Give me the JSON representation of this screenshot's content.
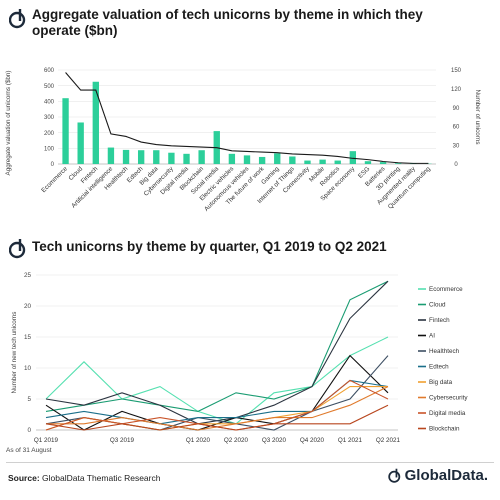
{
  "header1": {
    "title": "Aggregate valuation of  tech unicorns by theme in which they operate ($bn)"
  },
  "header2": {
    "title": "Tech unicorns by theme by quarter, Q1 2019 to Q2 2021"
  },
  "footer": {
    "note": "As of 31 August",
    "source_label": "Source:",
    "source_text": "GlobalData Thematic Research",
    "brand": "GlobalData."
  },
  "colors": {
    "bar": "#2ccf9a",
    "line_dark": "#1a1a1a",
    "grid": "#e6e6e6",
    "logo": "#1d2a3a"
  },
  "icons": {
    "logo": "globaldata-logo-icon"
  },
  "chart_data": [
    {
      "type": "bar",
      "title": "Aggregate valuation of  tech unicorns by theme in which they operate ($bn)",
      "ylabel": "Aggregate valuation of unicorns ($bn)",
      "y2label": "Number of unicorns",
      "ylim": [
        0,
        600
      ],
      "y2lim": [
        0,
        150
      ],
      "yticks": [
        0,
        100,
        200,
        300,
        400,
        500,
        600
      ],
      "y2ticks": [
        0,
        30,
        60,
        90,
        120,
        150
      ],
      "categories": [
        "Ecommerce",
        "Cloud",
        "Fintech",
        "Artificial intelligence",
        "Healthtech",
        "Edtech",
        "Big data",
        "Cybersecurity",
        "Digital media",
        "Blockchain",
        "Social media",
        "Electric vehicles",
        "Autonomous vehicles",
        "The future of work",
        "Gaming",
        "Internet of Things",
        "Connectivity",
        "Mobile",
        "Robotics",
        "Space economy",
        "ESG",
        "Batteries",
        "3D printing",
        "Augmented reality",
        "Quantum computing"
      ],
      "series": [
        {
          "values": [
            420,
            265,
            525,
            105,
            90,
            88,
            88,
            72,
            65,
            88,
            210,
            65,
            55,
            45,
            68,
            48,
            22,
            28,
            22,
            82,
            18,
            12,
            5,
            4,
            2
          ]
        },
        {
          "values": [
            146,
            118,
            118,
            48,
            44,
            35,
            31,
            29,
            28,
            27,
            26,
            21,
            20,
            19,
            18,
            16,
            15,
            14,
            12,
            9,
            7,
            4,
            2,
            1,
            1
          ]
        }
      ]
    },
    {
      "type": "line",
      "title": "Tech unicorns by theme by quarter, Q1 2019 to Q2 2021",
      "ylabel": "Number of new tech unicorns",
      "ylim": [
        0,
        25
      ],
      "yticks": [
        0,
        5,
        10,
        15,
        20,
        25
      ],
      "x": [
        "Q1 2019",
        "Q2 2019",
        "Q3 2019",
        "Q4 2019",
        "Q1 2020",
        "Q2 2020",
        "Q3 2020",
        "Q4 2020",
        "Q1 2021",
        "Q2 2021"
      ],
      "x_tick_labels": [
        "Q1 2019",
        "Q3 2019",
        "Q1 2020",
        "Q2 2020",
        "Q3 2020",
        "Q4 2020",
        "Q1 2021",
        "Q2 2021"
      ],
      "series": [
        {
          "name": "Ecommerce",
          "color": "#55e0b0",
          "values": [
            5,
            11,
            5,
            7,
            3,
            1,
            6,
            7,
            12,
            15
          ]
        },
        {
          "name": "Cloud",
          "color": "#1a9c72",
          "values": [
            3,
            4,
            5,
            4,
            3,
            6,
            5,
            7,
            21,
            24
          ]
        },
        {
          "name": "Fintech",
          "color": "#2b3440",
          "values": [
            5,
            4,
            6,
            4,
            1,
            2,
            4,
            7,
            18,
            24
          ]
        },
        {
          "name": "AI",
          "color": "#111111",
          "values": [
            4,
            0,
            3,
            1,
            0,
            2,
            1,
            3,
            12,
            6
          ]
        },
        {
          "name": "Healthtech",
          "color": "#3d4f63",
          "values": [
            1,
            2,
            1,
            0,
            2,
            1,
            0,
            3,
            5,
            12
          ]
        },
        {
          "name": "Edtech",
          "color": "#1b6f8a",
          "values": [
            2,
            3,
            2,
            1,
            2,
            2,
            3,
            3,
            8,
            7
          ]
        },
        {
          "name": "Big data",
          "color": "#f0a030",
          "values": [
            0,
            2,
            1,
            0,
            1,
            1,
            2,
            3,
            7,
            7
          ]
        },
        {
          "name": "Cybersecurity",
          "color": "#e07a2c",
          "values": [
            1,
            1,
            2,
            1,
            0,
            1,
            2,
            2,
            4,
            7
          ]
        },
        {
          "name": "Digital media",
          "color": "#c9542a",
          "values": [
            0,
            2,
            1,
            2,
            1,
            0,
            1,
            3,
            8,
            5
          ]
        },
        {
          "name": "Blockchain",
          "color": "#b8461e",
          "values": [
            1,
            0,
            1,
            0,
            1,
            0,
            1,
            1,
            1,
            4
          ]
        }
      ]
    }
  ]
}
